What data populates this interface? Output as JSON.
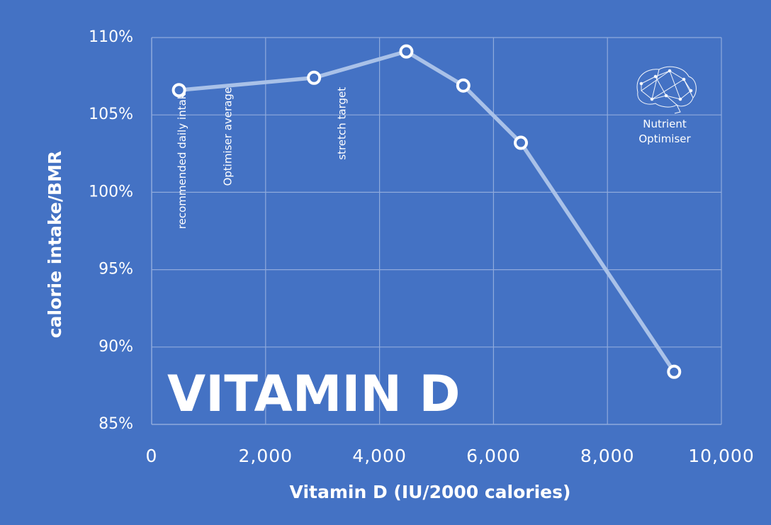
{
  "chart_data": {
    "type": "line",
    "title": "VITAMIN D",
    "xlabel": "Vitamin D (IU/2000 calories)",
    "ylabel": "calorie intake/BMR",
    "xlim": [
      0,
      10000
    ],
    "ylim": [
      85,
      110
    ],
    "x_ticks": [
      0,
      2000,
      4000,
      6000,
      8000,
      10000
    ],
    "x_tick_labels": [
      "0",
      "2,000",
      "4,000",
      "6,000",
      "8,000",
      "10,000"
    ],
    "y_ticks": [
      85,
      90,
      95,
      100,
      105,
      110
    ],
    "y_tick_labels": [
      "85%",
      "90%",
      "95%",
      "100%",
      "105%",
      "110%"
    ],
    "grid": true,
    "series": [
      {
        "name": "calorie intake/BMR",
        "x": [
          480,
          2850,
          4470,
          5470,
          6480,
          9170
        ],
        "y": [
          106.6,
          107.4,
          109.1,
          106.9,
          103.2,
          88.4
        ]
      }
    ],
    "annotations": [
      {
        "text": "recommended daily intake",
        "x": 600
      },
      {
        "text": "Optimiser average",
        "x": 1400
      },
      {
        "text": "stretch target",
        "x": 3400
      }
    ]
  },
  "branding": {
    "logo_icon": "brain-network-icon",
    "line1": "Nutrient",
    "line2": "Optimiser"
  },
  "colors": {
    "background": "#4472C4",
    "grid": "#8FAADC",
    "line": "#A9C1E8",
    "marker_fill": "#4472C4",
    "marker_stroke": "#ffffff"
  }
}
